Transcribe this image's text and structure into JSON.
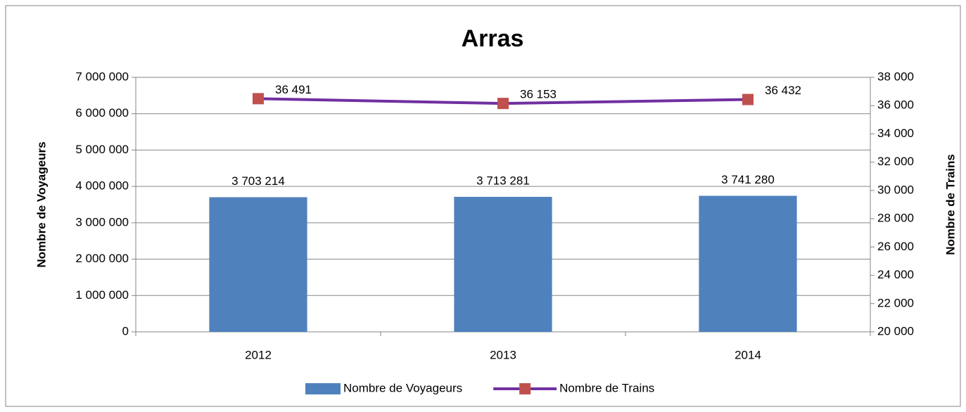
{
  "chart_data": {
    "type": "combo",
    "title": "Arras",
    "categories": [
      "2012",
      "2013",
      "2014"
    ],
    "y_label": "Nombre de Voyageurs",
    "y2_label": "Nombre de Trains",
    "series": [
      {
        "name": "Nombre de Voyageurs",
        "type": "bar",
        "color": "#4f81bd",
        "values": [
          3703214,
          3713281,
          3741280
        ],
        "value_labels": [
          "3 703 214",
          "3 713 281",
          "3 741 280"
        ]
      },
      {
        "name": "Nombre de Trains",
        "type": "line",
        "axis": "y2",
        "color": "#7030a0",
        "marker_color": "#c0504d",
        "values": [
          36491,
          36153,
          36432
        ],
        "value_labels": [
          "36 491",
          "36 153",
          "36 432"
        ]
      }
    ],
    "ylim": [
      0,
      7000000
    ],
    "yticks": [
      0,
      {
        "value": 1000000,
        "label": "1 000 000"
      },
      {
        "value": 2000000,
        "label": "2 000 000"
      },
      {
        "value": 3000000,
        "label": "3 000 000"
      },
      {
        "value": 4000000,
        "label": "4 000 000"
      },
      {
        "value": 5000000,
        "label": "5 000 000"
      },
      {
        "value": 6000000,
        "label": "6 000 000"
      },
      {
        "value": 7000000,
        "label": "7 000 000"
      }
    ],
    "y2lim": [
      20000,
      38000
    ],
    "y2ticks": [
      {
        "value": 20000,
        "label": "20 000"
      },
      {
        "value": 22000,
        "label": "22 000"
      },
      {
        "value": 24000,
        "label": "24 000"
      },
      {
        "value": 26000,
        "label": "26 000"
      },
      {
        "value": 28000,
        "label": "28 000"
      },
      {
        "value": 30000,
        "label": "30 000"
      },
      {
        "value": 32000,
        "label": "32 000"
      },
      {
        "value": 34000,
        "label": "34 000"
      },
      {
        "value": 36000,
        "label": "36 000"
      },
      {
        "value": 38000,
        "label": "38 000"
      }
    ],
    "grid": true,
    "legend": "bottom"
  }
}
